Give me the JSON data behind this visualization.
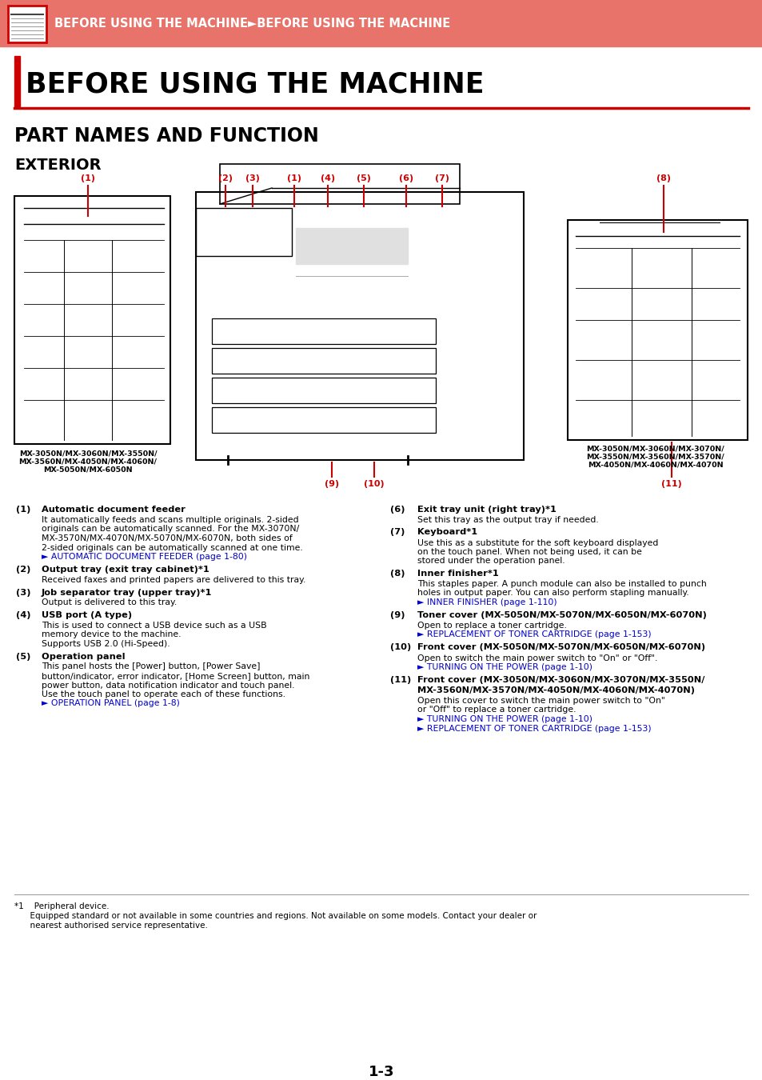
{
  "header_bg": "#E8736A",
  "header_text": "BEFORE USING THE MACHINE►BEFORE USING THE MACHINE",
  "header_text_color": "#FFFFFF",
  "title_main": "BEFORE USING THE MACHINE",
  "title_sub": "PART NAMES AND FUNCTION",
  "title_sub2": "EXTERIOR",
  "red_bar_color": "#CC0000",
  "link_color": "#0000CC",
  "text_color": "#000000",
  "items_left": [
    {
      "num": "(1)",
      "bold": "Automatic document feeder",
      "text": "It automatically feeds and scans multiple originals. 2-sided\noriginals can be automatically scanned. For the MX-3070N/\nMX-3570N/MX-4070N/MX-5070N/MX-6070N, both sides of\n2-sided originals can be automatically scanned at one time.",
      "link": "► AUTOMATIC DOCUMENT FEEDER (page 1-80)",
      "link2": ""
    },
    {
      "num": "(2)",
      "bold": "Output tray (exit tray cabinet)*1",
      "text": "Received faxes and printed papers are delivered to this tray.",
      "link": "",
      "link2": ""
    },
    {
      "num": "(3)",
      "bold": "Job separator tray (upper tray)*1",
      "text": "Output is delivered to this tray.",
      "link": "",
      "link2": ""
    },
    {
      "num": "(4)",
      "bold": "USB port (A type)",
      "text": "This is used to connect a USB device such as a USB\nmemory device to the machine.\nSupports USB 2.0 (Hi-Speed).",
      "link": "",
      "link2": ""
    },
    {
      "num": "(5)",
      "bold": "Operation panel",
      "text": "This panel hosts the [Power] button, [Power Save]\nbutton/indicator, error indicator, [Home Screen] button, main\npower button, data notification indicator and touch panel.\nUse the touch panel to operate each of these functions.",
      "link": "► OPERATION PANEL (page 1-8)",
      "link2": ""
    }
  ],
  "items_right": [
    {
      "num": "(6)",
      "bold": "Exit tray unit (right tray)*1",
      "text": "Set this tray as the output tray if needed.",
      "link": "",
      "link2": ""
    },
    {
      "num": "(7)",
      "bold": "Keyboard*1",
      "text": "Use this as a substitute for the soft keyboard displayed\non the touch panel. When not being used, it can be\nstored under the operation panel.",
      "link": "",
      "link2": ""
    },
    {
      "num": "(8)",
      "bold": "Inner finisher*1",
      "text": "This staples paper. A punch module can also be installed to punch\nholes in output paper. You can also perform stapling manually.",
      "link": "► INNER FINISHER (page 1-110)",
      "link2": ""
    },
    {
      "num": "(9)",
      "bold": "Toner cover (MX-5050N/MX-5070N/MX-6050N/MX-6070N)",
      "text": "Open to replace a toner cartridge.",
      "link": "► REPLACEMENT OF TONER CARTRIDGE (page 1-153)",
      "link2": ""
    },
    {
      "num": "(10)",
      "bold": "Front cover (MX-5050N/MX-5070N/MX-6050N/MX-6070N)",
      "text": "Open to switch the main power switch to \"On\" or \"Off\".",
      "link": "► TURNING ON THE POWER (page 1-10)",
      "link2": ""
    },
    {
      "num": "(11)",
      "bold": "Front cover (MX-3050N/MX-3060N/MX-3070N/MX-3550N/\nMX-3560N/MX-3570N/MX-4050N/MX-4060N/MX-4070N)",
      "text": "Open this cover to switch the main power switch to \"On\"\nor \"Off\" to replace a toner cartridge.",
      "link": "► TURNING ON THE POWER (page 1-10)",
      "link2": "► REPLACEMENT OF TONER CARTRIDGE (page 1-153)"
    }
  ],
  "page_num": "1-3",
  "left_machine_label": "MX-3050N/MX-3060N/MX-3550N/\nMX-3560N/MX-4050N/MX-4060N/\nMX-5050N/MX-6050N",
  "right_machine_label": "MX-3050N/MX-3060N/MX-3070N/\nMX-3550N/MX-3560N/MX-3570N/\nMX-4050N/MX-4060N/MX-4070N"
}
